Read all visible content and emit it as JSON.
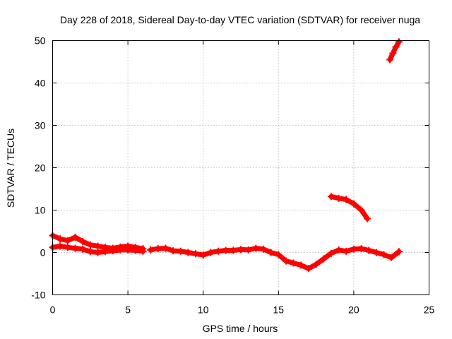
{
  "chart_data": {
    "type": "scatter",
    "title": "Day 228 of 2018, Sidereal Day-to-day VTEC variation (SDTVAR) for receiver nuga",
    "xlabel": "GPS time / hours",
    "ylabel": "SDTVAR / TECUs",
    "xlim": [
      0,
      25
    ],
    "ylim": [
      -10,
      50
    ],
    "xticks": [
      0,
      5,
      10,
      15,
      20,
      25
    ],
    "yticks": [
      -10,
      0,
      10,
      20,
      30,
      40,
      50
    ],
    "xtick_labels": [
      "0",
      "5",
      "10",
      "15",
      "20",
      "25"
    ],
    "ytick_labels": [
      "-10",
      "0",
      "10",
      "20",
      "30",
      "40",
      "50"
    ],
    "grid": true,
    "color": "#ff0000",
    "series": [
      {
        "name": "main-trace-upper",
        "points": [
          [
            0.0,
            4.0
          ],
          [
            0.5,
            3.2
          ],
          [
            1.0,
            2.8
          ],
          [
            1.5,
            3.6
          ],
          [
            2.0,
            2.6
          ],
          [
            2.5,
            1.8
          ],
          [
            3.0,
            1.5
          ],
          [
            3.5,
            1.2
          ],
          [
            4.0,
            1.0
          ],
          [
            4.5,
            1.3
          ],
          [
            5.0,
            1.5
          ],
          [
            5.5,
            1.2
          ],
          [
            6.0,
            0.9
          ]
        ]
      },
      {
        "name": "main-trace-lower",
        "points": [
          [
            0.0,
            1.2
          ],
          [
            0.5,
            1.5
          ],
          [
            1.0,
            1.2
          ],
          [
            1.5,
            1.0
          ],
          [
            2.0,
            0.8
          ],
          [
            2.5,
            0.2
          ],
          [
            3.0,
            0.0
          ],
          [
            3.5,
            0.2
          ],
          [
            4.0,
            0.4
          ],
          [
            4.5,
            0.6
          ],
          [
            5.0,
            0.6
          ],
          [
            5.5,
            0.5
          ],
          [
            6.0,
            0.3
          ]
        ]
      },
      {
        "name": "main-trace-day",
        "points": [
          [
            6.5,
            0.6
          ],
          [
            7.0,
            0.9
          ],
          [
            7.5,
            1.0
          ],
          [
            8.0,
            0.4
          ],
          [
            8.5,
            0.3
          ],
          [
            9.0,
            0.0
          ],
          [
            9.5,
            -0.3
          ],
          [
            10.0,
            -0.6
          ],
          [
            10.5,
            0.0
          ],
          [
            11.0,
            0.3
          ],
          [
            11.5,
            0.5
          ],
          [
            12.0,
            0.5
          ],
          [
            12.5,
            0.7
          ],
          [
            13.0,
            0.6
          ],
          [
            13.5,
            1.0
          ],
          [
            14.0,
            0.8
          ],
          [
            14.5,
            0.0
          ],
          [
            15.0,
            -0.5
          ],
          [
            15.5,
            -2.0
          ],
          [
            16.0,
            -2.5
          ],
          [
            16.5,
            -3.0
          ],
          [
            17.0,
            -3.8
          ],
          [
            17.5,
            -2.8
          ],
          [
            18.0,
            -1.5
          ],
          [
            18.5,
            -0.2
          ],
          [
            19.0,
            0.6
          ],
          [
            19.5,
            0.3
          ],
          [
            20.0,
            0.8
          ],
          [
            20.5,
            0.9
          ],
          [
            21.0,
            0.5
          ],
          [
            21.5,
            0.0
          ],
          [
            22.0,
            -0.5
          ],
          [
            22.5,
            -1.2
          ],
          [
            23.0,
            0.2
          ]
        ]
      },
      {
        "name": "branch-late",
        "points": [
          [
            18.5,
            13.2
          ],
          [
            19.0,
            12.8
          ],
          [
            19.5,
            12.5
          ],
          [
            20.0,
            11.5
          ],
          [
            20.5,
            10.0
          ],
          [
            20.9,
            8.0
          ]
        ]
      },
      {
        "name": "branch-top",
        "points": [
          [
            22.4,
            45.5
          ],
          [
            22.6,
            47.0
          ],
          [
            22.8,
            48.5
          ],
          [
            23.0,
            49.7
          ]
        ]
      }
    ]
  }
}
